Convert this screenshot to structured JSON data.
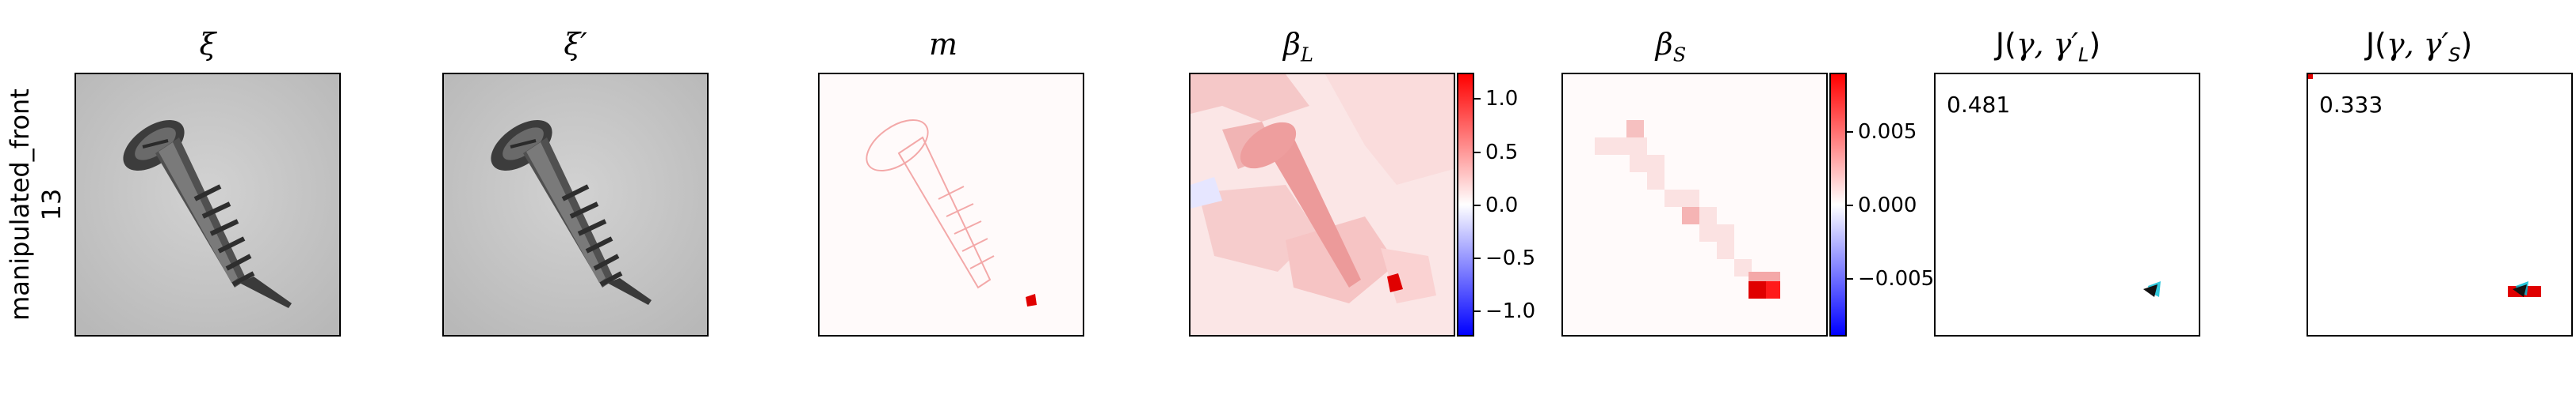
{
  "row_label": {
    "line1": "manipulated_front",
    "line2": "13"
  },
  "titles": {
    "xi": "ξ",
    "xi_prime": "ξ′",
    "m": "m",
    "beta_L_base": "β",
    "beta_L_sub": "L",
    "beta_S_base": "β",
    "beta_S_sub": "S",
    "J_L_prefix": "J(",
    "J_L_gamma": "γ, γ′",
    "J_L_sub": "L",
    "J_L_suffix": ")",
    "J_S_prefix": "J(",
    "J_S_gamma": "γ, γ′",
    "J_S_sub": "S",
    "J_S_suffix": ")"
  },
  "colorbar_L": {
    "ticks": [
      "1.0",
      "0.5",
      "0.0",
      "−0.5",
      "−1.0"
    ],
    "tick_values": [
      1.0,
      0.5,
      0.0,
      -0.5,
      -1.0
    ],
    "range": [
      -1.2,
      1.2
    ]
  },
  "colorbar_S": {
    "ticks": [
      "0.005",
      "0.000",
      "−0.005"
    ],
    "tick_values": [
      0.005,
      0.0,
      -0.005
    ],
    "range": [
      -0.009,
      0.009
    ]
  },
  "scores": {
    "J_L": "0.481",
    "J_S": "0.333"
  },
  "colors": {
    "positive": "#ff0000",
    "negative": "#0000ff",
    "neutral": "#ffffff",
    "contour": "#00bcd4"
  }
}
